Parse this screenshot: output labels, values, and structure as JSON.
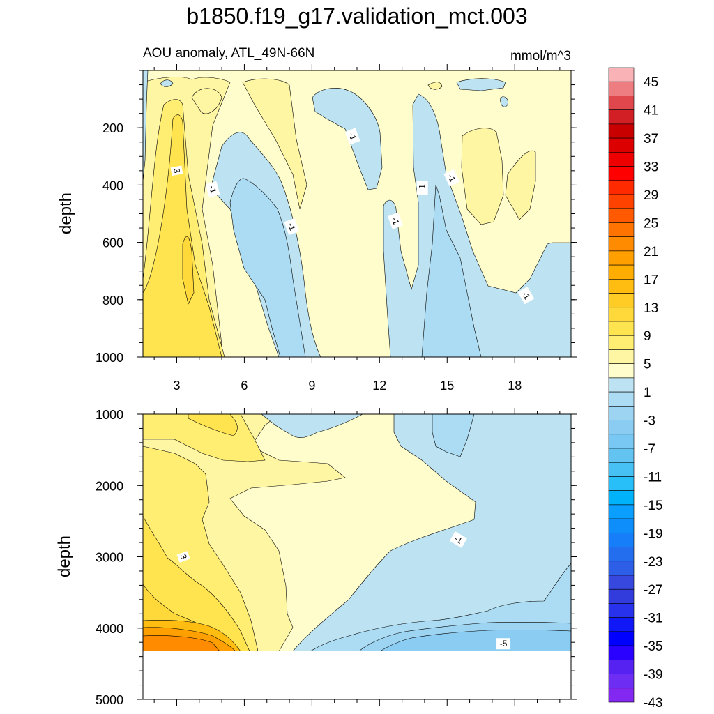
{
  "chart_data": {
    "type": "contour",
    "title": "b1850.f19_g17.validation_mct.003",
    "units": "mmol/m^3",
    "colorbar": {
      "labels": [
        "45",
        "41",
        "37",
        "33",
        "29",
        "25",
        "21",
        "17",
        "13",
        "9",
        "5",
        "1",
        "-3",
        "-7",
        "-11",
        "-15",
        "-19",
        "-23",
        "-27",
        "-31",
        "-35",
        "-39",
        "-43"
      ],
      "fill_colors": [
        "#f9b3b7",
        "#ee7d82",
        "#e0474c",
        "#d21f25",
        "#c80000",
        "#dd0000",
        "#ee0000",
        "#ff0000",
        "#ff2a00",
        "#ff4200",
        "#ff5a00",
        "#ff7400",
        "#ff8b00",
        "#ffa000",
        "#ffad00",
        "#ffbd12",
        "#ffcc25",
        "#ffd83a",
        "#ffe34f",
        "#ffee72",
        "#fff6a4",
        "#fffdcc",
        "#bde3f2",
        "#acdcf3",
        "#9cd4f1",
        "#8bcdf2",
        "#79c7f3",
        "#63c4f2",
        "#47c1f4",
        "#28bff8",
        "#00b2f9",
        "#0a9eff",
        "#0d8efb",
        "#177ef9",
        "#226eef",
        "#2c5ee8",
        "#3648de",
        "#323bdb",
        "#2831ec",
        "#1018f7",
        "#0000ff",
        "#2a00ff",
        "#5622f2",
        "#6d2df2",
        "#8228f0"
      ]
    },
    "panels": [
      {
        "subtitle_left": "AOU anomaly, ATL_49N-66N",
        "ylabel": "depth",
        "ylim": [
          1000,
          0
        ],
        "yticks": [
          200,
          400,
          600,
          800,
          1000
        ],
        "xlim": [
          1.5,
          20.5
        ],
        "xticks": [
          3,
          6,
          9,
          12,
          15,
          18
        ],
        "contour_labels": [
          {
            "text": "3",
            "x": 3,
            "depth": 350,
            "rot": 80
          },
          {
            "text": "-1",
            "x": 4.6,
            "depth": 415,
            "rot": 75
          },
          {
            "text": "-1",
            "x": 8.1,
            "depth": 545,
            "rot": 70
          },
          {
            "text": "-1",
            "x": 10.8,
            "depth": 230,
            "rot": 70
          },
          {
            "text": "-1",
            "x": 12.7,
            "depth": 525,
            "rot": 70
          },
          {
            "text": "-1",
            "x": 13.9,
            "depth": 410,
            "rot": 270
          },
          {
            "text": "-1",
            "x": 15.2,
            "depth": 375,
            "rot": 65
          },
          {
            "text": "-1",
            "x": 18.5,
            "depth": 785,
            "rot": 60
          }
        ]
      },
      {
        "ylabel": "depth",
        "ylim": [
          5000,
          1000
        ],
        "yticks": [
          1000,
          2000,
          3000,
          4000,
          5000
        ],
        "xlim": [
          1.5,
          20.5
        ],
        "contour_labels": [
          {
            "text": "3",
            "x": 3.3,
            "depth": 3000,
            "rot": 70
          },
          {
            "text": "-1",
            "x": 15.5,
            "depth": 2760,
            "rot": 30
          },
          {
            "text": "-5",
            "x": 17.5,
            "depth": 4220,
            "rot": 0
          }
        ]
      }
    ]
  }
}
